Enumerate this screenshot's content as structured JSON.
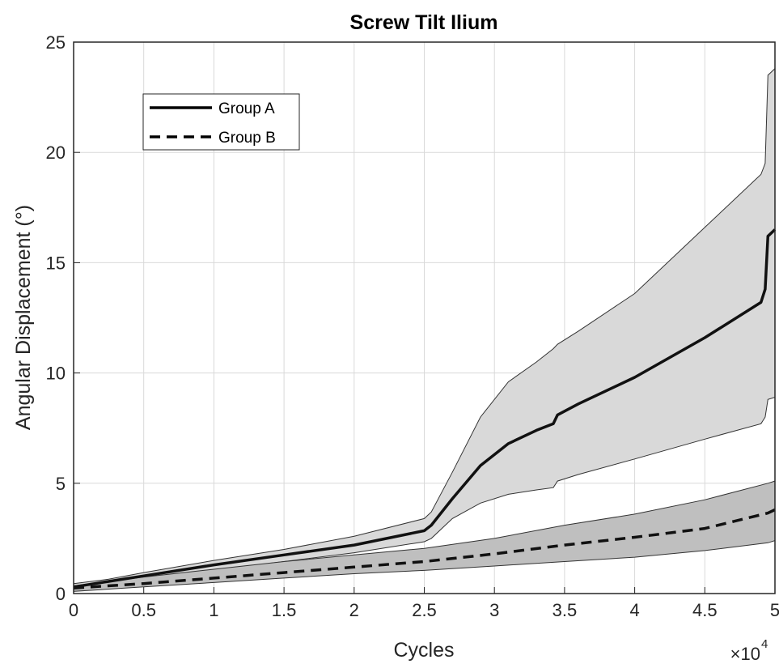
{
  "chart_data": {
    "type": "line",
    "title": "Screw Tilt Ilium",
    "xlabel": "Cycles",
    "ylabel": "Angular Displacement (°)",
    "x_exponent_label": "×10",
    "x_exponent_power": "4",
    "xlim": [
      0,
      5
    ],
    "ylim": [
      0,
      25
    ],
    "xticks": [
      "0",
      "0.5",
      "1",
      "1.5",
      "2",
      "2.5",
      "3",
      "3.5",
      "4",
      "4.5",
      "5"
    ],
    "yticks": [
      "0",
      "5",
      "10",
      "15",
      "20",
      "25"
    ],
    "grid": true,
    "legend_position": "top-left",
    "series": [
      {
        "name": "Group A",
        "line_style": "solid",
        "band_color": "#d9d9d9",
        "x": [
          0,
          0.25,
          0.5,
          1.0,
          1.5,
          2.0,
          2.5,
          2.55,
          2.7,
          2.9,
          3.1,
          3.3,
          3.42,
          3.45,
          3.6,
          4.0,
          4.5,
          4.9,
          4.93,
          4.95,
          5.0
        ],
        "mean": [
          0.3,
          0.55,
          0.8,
          1.3,
          1.75,
          2.2,
          2.85,
          3.1,
          4.3,
          5.8,
          6.8,
          7.4,
          7.7,
          8.1,
          8.6,
          9.8,
          11.6,
          13.2,
          13.8,
          16.2,
          16.5
        ],
        "upper": [
          0.45,
          0.65,
          0.95,
          1.5,
          2.0,
          2.6,
          3.4,
          3.7,
          5.5,
          8.0,
          9.6,
          10.5,
          11.1,
          11.3,
          11.9,
          13.6,
          16.6,
          19.0,
          19.5,
          23.5,
          23.8
        ],
        "lower": [
          0.15,
          0.4,
          0.6,
          1.05,
          1.45,
          1.85,
          2.35,
          2.5,
          3.4,
          4.1,
          4.5,
          4.7,
          4.8,
          5.1,
          5.4,
          6.1,
          7.0,
          7.7,
          8.0,
          8.8,
          8.9
        ]
      },
      {
        "name": "Group B",
        "line_style": "dashed",
        "band_color": "#bfbfbf",
        "x": [
          0,
          0.5,
          1.0,
          1.5,
          2.0,
          2.5,
          3.0,
          3.5,
          4.0,
          4.5,
          4.95,
          5.0
        ],
        "mean": [
          0.25,
          0.45,
          0.7,
          0.95,
          1.2,
          1.45,
          1.8,
          2.2,
          2.55,
          2.95,
          3.65,
          3.8
        ],
        "upper": [
          0.35,
          0.75,
          1.1,
          1.45,
          1.75,
          2.05,
          2.5,
          3.1,
          3.6,
          4.25,
          5.0,
          5.1
        ],
        "lower": [
          0.1,
          0.3,
          0.5,
          0.7,
          0.9,
          1.05,
          1.25,
          1.45,
          1.65,
          1.95,
          2.3,
          2.4
        ]
      }
    ]
  }
}
